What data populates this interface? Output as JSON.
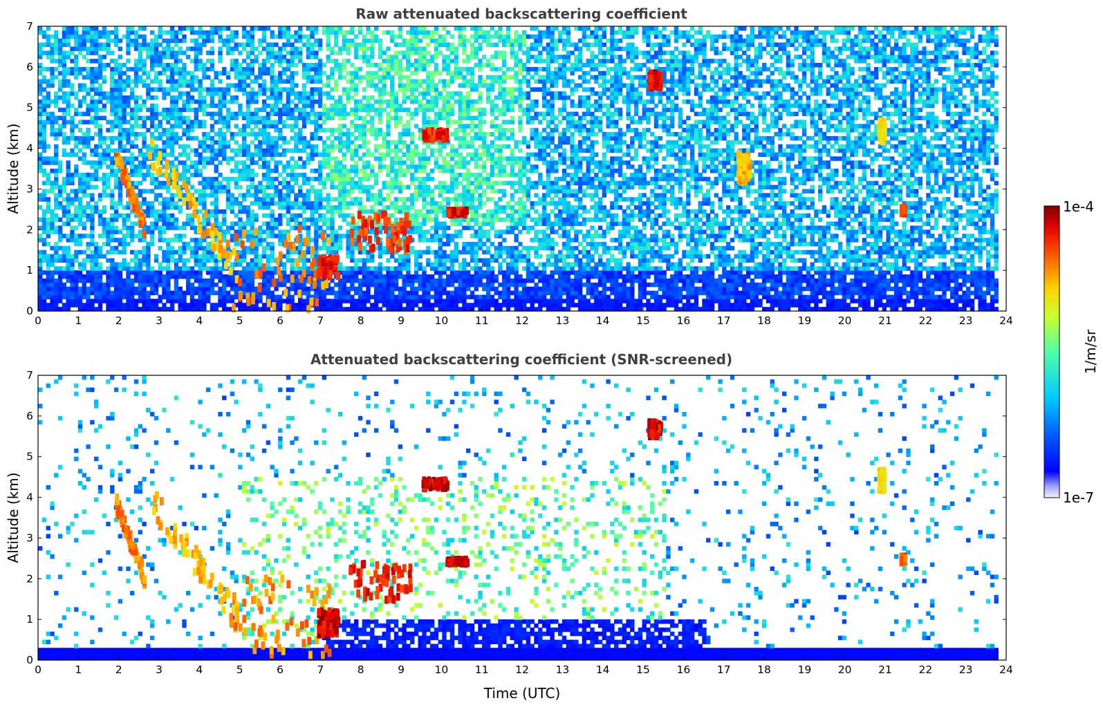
{
  "chart_data": [
    {
      "type": "heatmap",
      "title": "Raw attenuated backscattering coefficient",
      "xlabel": "",
      "ylabel": "Altitude (km)",
      "xlim": [
        0,
        24
      ],
      "ylim": [
        0,
        7
      ],
      "xticks": [
        "0",
        "1",
        "2",
        "3",
        "4",
        "5",
        "6",
        "7",
        "8",
        "9",
        "10",
        "11",
        "12",
        "13",
        "14",
        "15",
        "16",
        "17",
        "18",
        "19",
        "20",
        "21",
        "22",
        "23",
        "24"
      ],
      "yticks": [
        "0",
        "1",
        "2",
        "3",
        "4",
        "5",
        "6",
        "7"
      ],
      "data_end_time": 23.8,
      "features": [
        {
          "kind": "aerosol_layer",
          "time": [
            1.9,
            2.6
          ],
          "alt": [
            2.0,
            3.8
          ],
          "level": 0.85
        },
        {
          "kind": "aerosol_layer",
          "time": [
            2.7,
            4.9
          ],
          "alt": [
            1.0,
            4.0
          ],
          "level": 0.8
        },
        {
          "kind": "boundary_layer_plume",
          "time": [
            4.8,
            7.2
          ],
          "alt": [
            0.0,
            2.0
          ],
          "level": 0.85
        },
        {
          "kind": "cloud",
          "time": [
            6.9,
            7.4
          ],
          "alt": [
            0.6,
            1.5
          ],
          "level": 0.95
        },
        {
          "kind": "cloud",
          "time": [
            7.7,
            9.2
          ],
          "alt": [
            1.0,
            2.8
          ],
          "level": 0.92
        },
        {
          "kind": "cloud",
          "time": [
            9.5,
            10.1
          ],
          "alt": [
            4.1,
            4.5
          ],
          "level": 0.95
        },
        {
          "kind": "cloud",
          "time": [
            10.1,
            10.6
          ],
          "alt": [
            2.3,
            2.5
          ],
          "level": 0.97
        },
        {
          "kind": "cloud",
          "time": [
            15.1,
            15.4
          ],
          "alt": [
            5.3,
            6.0
          ],
          "level": 0.98
        },
        {
          "kind": "cloud",
          "time": [
            17.3,
            17.6
          ],
          "alt": [
            2.8,
            4.2
          ],
          "level": 0.8
        },
        {
          "kind": "cloud",
          "time": [
            20.8,
            20.95
          ],
          "alt": [
            3.9,
            4.9
          ],
          "level": 0.75
        },
        {
          "kind": "cloud",
          "time": [
            21.35,
            21.45
          ],
          "alt": [
            2.3,
            2.6
          ],
          "level": 0.9
        }
      ]
    },
    {
      "type": "heatmap",
      "title": "Attenuated backscattering coefficient (SNR-screened)",
      "xlabel": "Time (UTC)",
      "ylabel": "Altitude (km)",
      "xlim": [
        0,
        24
      ],
      "ylim": [
        0,
        7
      ],
      "xticks": [
        "0",
        "1",
        "2",
        "3",
        "4",
        "5",
        "6",
        "7",
        "8",
        "9",
        "10",
        "11",
        "12",
        "13",
        "14",
        "15",
        "16",
        "17",
        "18",
        "19",
        "20",
        "21",
        "22",
        "23",
        "24"
      ],
      "yticks": [
        "0",
        "1",
        "2",
        "3",
        "4",
        "5",
        "6",
        "7"
      ],
      "data_end_time": 23.8,
      "features": [
        {
          "kind": "aerosol_layer",
          "time": [
            1.9,
            2.6
          ],
          "alt": [
            2.0,
            3.8
          ],
          "level": 0.85
        },
        {
          "kind": "aerosol_layer",
          "time": [
            2.7,
            4.9
          ],
          "alt": [
            1.0,
            4.0
          ],
          "level": 0.8
        },
        {
          "kind": "boundary_layer_plume",
          "time": [
            4.8,
            7.2
          ],
          "alt": [
            0.0,
            2.0
          ],
          "level": 0.85
        },
        {
          "kind": "cloud",
          "time": [
            6.9,
            7.4
          ],
          "alt": [
            0.3,
            1.5
          ],
          "level": 1.0
        },
        {
          "kind": "cloud",
          "time": [
            7.7,
            9.2
          ],
          "alt": [
            1.0,
            2.8
          ],
          "level": 0.95
        },
        {
          "kind": "cloud",
          "time": [
            9.5,
            10.1
          ],
          "alt": [
            4.1,
            4.5
          ],
          "level": 1.0
        },
        {
          "kind": "cloud",
          "time": [
            10.1,
            10.6
          ],
          "alt": [
            2.3,
            2.5
          ],
          "level": 1.0
        },
        {
          "kind": "cloud",
          "time": [
            15.1,
            15.4
          ],
          "alt": [
            5.3,
            6.0
          ],
          "level": 0.98
        },
        {
          "kind": "cloud",
          "time": [
            20.8,
            20.95
          ],
          "alt": [
            3.9,
            4.9
          ],
          "level": 0.75
        },
        {
          "kind": "cloud",
          "time": [
            21.35,
            21.45
          ],
          "alt": [
            2.3,
            2.6
          ],
          "level": 0.9
        }
      ]
    }
  ],
  "colorbar": {
    "label": "1/m/sr",
    "max_label": "1e-4",
    "min_label": "1e-7",
    "scale": "log",
    "range": [
      1e-07,
      0.0001
    ],
    "colormap": "jet"
  }
}
